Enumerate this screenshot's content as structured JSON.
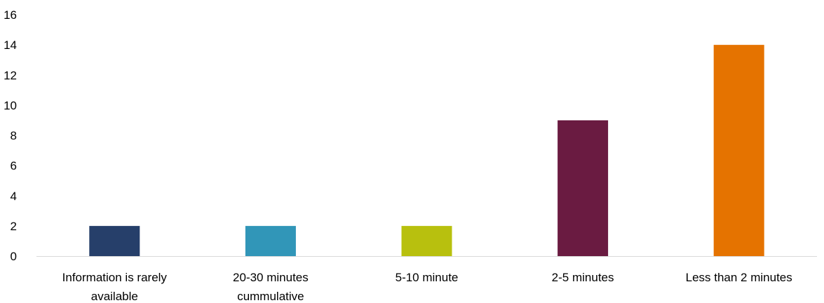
{
  "chart_data": {
    "type": "bar",
    "title": "",
    "xlabel": "",
    "ylabel": "",
    "ylim": [
      0,
      16
    ],
    "y_ticks": [
      0,
      2,
      4,
      6,
      8,
      10,
      12,
      14,
      16
    ],
    "grid": false,
    "legend": "none",
    "categories": [
      [
        "Information is rarely",
        "available"
      ],
      [
        "20-30 minutes",
        "cummulative"
      ],
      [
        "5-10 minute"
      ],
      [
        "2-5 minutes"
      ],
      [
        "Less than 2 minutes"
      ]
    ],
    "values": [
      2,
      2,
      2,
      9,
      14
    ],
    "colors": [
      "#263f6a",
      "#3196b8",
      "#b8c00e",
      "#6a1b41",
      "#e57300"
    ]
  }
}
